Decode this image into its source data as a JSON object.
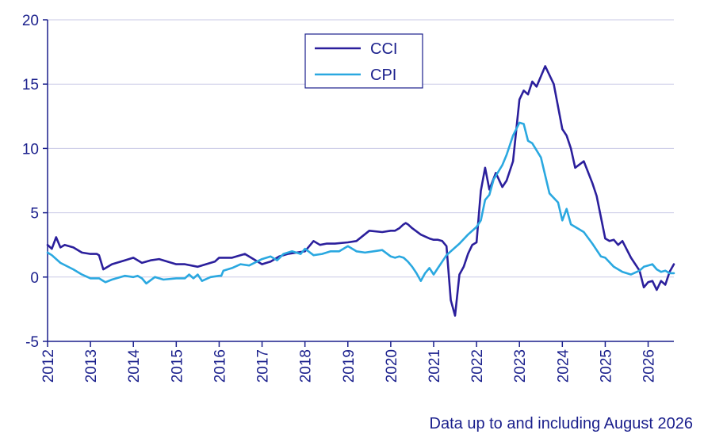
{
  "chart_data": {
    "type": "line",
    "title": "",
    "xlabel": "",
    "ylabel": "",
    "ylim": [
      -5,
      20
    ],
    "yticks": [
      -5,
      0,
      5,
      10,
      15,
      20
    ],
    "xticks": [
      "2012",
      "2013",
      "2014",
      "2015",
      "2016",
      "2017",
      "2018",
      "2019",
      "2020",
      "2021",
      "2022",
      "2023",
      "2024",
      "2025",
      "2026"
    ],
    "grid": "horizontal",
    "legend": "top-center",
    "note": "Data up to and including August 2026",
    "series": [
      {
        "name": "CCI",
        "color": "#2b1f9c",
        "x": [
          2012.0,
          2012.1,
          2012.2,
          2012.3,
          2012.4,
          2012.6,
          2012.8,
          2013.0,
          2013.15,
          2013.2,
          2013.3,
          2013.5,
          2013.8,
          2014.0,
          2014.2,
          2014.4,
          2014.6,
          2015.0,
          2015.2,
          2015.5,
          2015.9,
          2016.0,
          2016.3,
          2016.6,
          2017.0,
          2017.1,
          2017.2,
          2017.4,
          2017.6,
          2018.0,
          2018.2,
          2018.35,
          2018.5,
          2018.7,
          2019.0,
          2019.2,
          2019.5,
          2019.8,
          2020.0,
          2020.05,
          2020.1,
          2020.2,
          2020.3,
          2020.35,
          2020.4,
          2020.5,
          2020.7,
          2020.9,
          2021.0,
          2021.1,
          2021.2,
          2021.3,
          2021.4,
          2021.5,
          2021.6,
          2021.7,
          2021.8,
          2021.9,
          2022.0,
          2022.1,
          2022.2,
          2022.3,
          2022.45,
          2022.6,
          2022.7,
          2022.85,
          2023.0,
          2023.1,
          2023.2,
          2023.3,
          2023.4,
          2023.6,
          2023.8,
          2024.0,
          2024.1,
          2024.2,
          2024.3,
          2024.5,
          2024.7,
          2024.8,
          2025.0,
          2025.1,
          2025.2,
          2025.3,
          2025.4,
          2025.6,
          2025.8,
          2025.9,
          2026.0,
          2026.1,
          2026.2,
          2026.3,
          2026.4,
          2026.5,
          2026.6
        ],
        "values": [
          2.5,
          2.2,
          3.1,
          2.3,
          2.5,
          2.3,
          1.9,
          1.8,
          1.8,
          1.7,
          0.6,
          1.0,
          1.3,
          1.5,
          1.1,
          1.3,
          1.4,
          1.0,
          1.0,
          0.8,
          1.2,
          1.5,
          1.5,
          1.8,
          1.0,
          1.1,
          1.2,
          1.6,
          1.8,
          2.0,
          2.8,
          2.5,
          2.6,
          2.6,
          2.7,
          2.8,
          3.6,
          3.5,
          3.6,
          3.6,
          3.6,
          3.8,
          4.1,
          4.2,
          4.1,
          3.8,
          3.3,
          3.0,
          2.9,
          2.9,
          2.8,
          2.4,
          -1.8,
          -3.0,
          0.2,
          0.8,
          1.8,
          2.5,
          2.7,
          6.7,
          8.5,
          6.8,
          8.1,
          7.0,
          7.5,
          9.0,
          13.8,
          14.5,
          14.2,
          15.2,
          14.8,
          16.4,
          15.0,
          11.5,
          11.0,
          10.0,
          8.5,
          9.0,
          7.3,
          6.3,
          3.0,
          2.8,
          2.9,
          2.5,
          2.8,
          1.5,
          0.5,
          -0.8,
          -0.4,
          -0.3,
          -1.0,
          -0.3,
          -0.6,
          0.4,
          1.0
        ]
      },
      {
        "name": "CPI",
        "color": "#2aa8e0",
        "x": [
          2012.0,
          2012.1,
          2012.3,
          2012.6,
          2012.8,
          2013.0,
          2013.2,
          2013.35,
          2013.5,
          2013.8,
          2014.0,
          2014.1,
          2014.2,
          2014.3,
          2014.5,
          2014.7,
          2015.0,
          2015.2,
          2015.3,
          2015.4,
          2015.5,
          2015.6,
          2015.8,
          2016.0,
          2016.05,
          2016.1,
          2016.3,
          2016.5,
          2016.7,
          2017.0,
          2017.2,
          2017.35,
          2017.5,
          2017.7,
          2017.9,
          2018.0,
          2018.2,
          2018.4,
          2018.6,
          2018.8,
          2019.0,
          2019.2,
          2019.4,
          2019.6,
          2019.8,
          2020.0,
          2020.1,
          2020.2,
          2020.3,
          2020.4,
          2020.5,
          2020.6,
          2020.7,
          2020.8,
          2020.9,
          2021.0,
          2021.1,
          2021.2,
          2021.3,
          2021.4,
          2021.6,
          2021.8,
          2022.0,
          2022.1,
          2022.2,
          2022.3,
          2022.4,
          2022.6,
          2022.7,
          2022.85,
          2023.0,
          2023.1,
          2023.2,
          2023.3,
          2023.5,
          2023.7,
          2023.9,
          2024.0,
          2024.1,
          2024.2,
          2024.35,
          2024.5,
          2024.7,
          2024.9,
          2025.0,
          2025.2,
          2025.4,
          2025.6,
          2025.8,
          2025.9,
          2026.0,
          2026.1,
          2026.2,
          2026.3,
          2026.4,
          2026.5,
          2026.6
        ],
        "values": [
          1.9,
          1.7,
          1.1,
          0.6,
          0.2,
          -0.1,
          -0.1,
          -0.4,
          -0.2,
          0.1,
          0.0,
          0.1,
          -0.1,
          -0.5,
          0.0,
          -0.2,
          -0.1,
          -0.1,
          0.2,
          -0.1,
          0.2,
          -0.3,
          0.0,
          0.1,
          0.1,
          0.5,
          0.7,
          1.0,
          0.9,
          1.4,
          1.6,
          1.3,
          1.8,
          2.0,
          1.8,
          2.2,
          1.7,
          1.8,
          2.0,
          2.0,
          2.4,
          2.0,
          1.9,
          2.0,
          2.1,
          1.6,
          1.5,
          1.6,
          1.5,
          1.2,
          0.8,
          0.3,
          -0.3,
          0.3,
          0.7,
          0.2,
          0.7,
          1.2,
          1.7,
          2.0,
          2.6,
          3.3,
          3.9,
          4.4,
          6.0,
          6.4,
          7.6,
          8.7,
          9.5,
          11.0,
          12.0,
          11.9,
          10.6,
          10.4,
          9.3,
          6.5,
          5.8,
          4.4,
          5.3,
          4.1,
          3.8,
          3.5,
          2.6,
          1.6,
          1.5,
          0.8,
          0.4,
          0.2,
          0.5,
          0.8,
          0.9,
          1.0,
          0.6,
          0.4,
          0.5,
          0.3,
          0.3
        ]
      }
    ]
  }
}
